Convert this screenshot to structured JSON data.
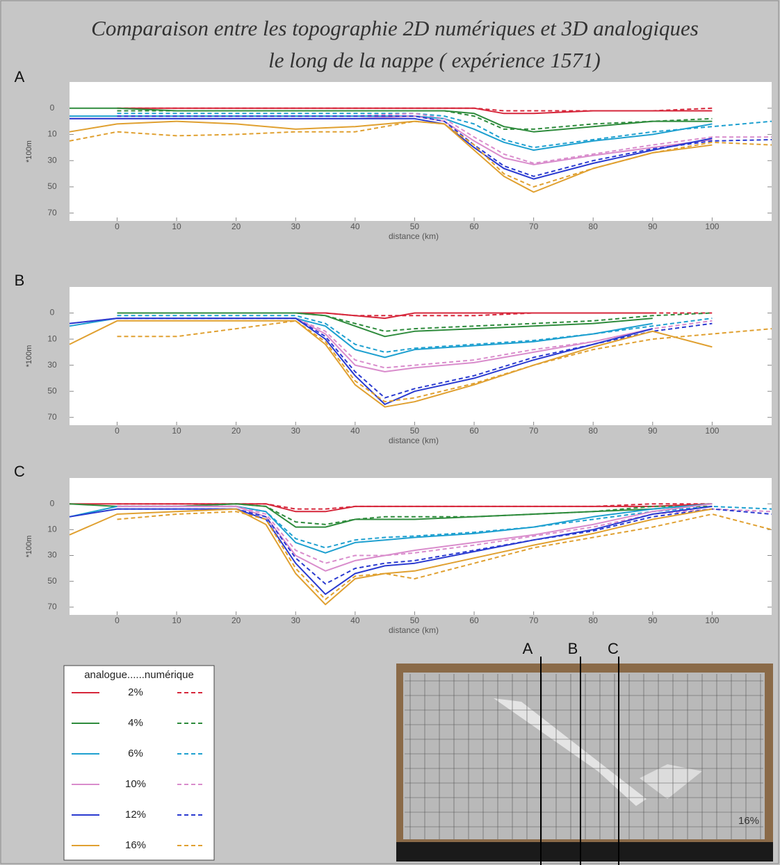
{
  "title": [
    "Comparaison  entre les topographie 2D numériques et 3D analogiques",
    "le long de la nappe ( expérience 1571)"
  ],
  "legend_header": "analogue......numérique",
  "photo": {
    "labels": [
      "A",
      "B",
      "C"
    ],
    "caption": "16%"
  },
  "chart_data": [
    {
      "type": "line",
      "label": "A",
      "xlabel": "distance (km)",
      "ylabel": "*100m",
      "x": [
        -8,
        0,
        10,
        20,
        30,
        40,
        50,
        55,
        60,
        65,
        70,
        80,
        90,
        100,
        110
      ],
      "xlim": [
        -8,
        110
      ],
      "ylim": [
        -10,
        76
      ],
      "xticks": [
        0,
        10,
        20,
        30,
        40,
        50,
        60,
        70,
        80,
        90,
        100
      ],
      "yticks": [
        0,
        10,
        30,
        50,
        70
      ],
      "y_inverted": true,
      "series": [
        {
          "name": "2%",
          "color": "#d6263a",
          "dash": false,
          "values": [
            null,
            0,
            0,
            0,
            0,
            0,
            0,
            0,
            0,
            2,
            2,
            1,
            1,
            1,
            null
          ]
        },
        {
          "name": "2%",
          "color": "#d6263a",
          "dash": true,
          "values": [
            null,
            0,
            0,
            0,
            0,
            0,
            0,
            0,
            0,
            1,
            1,
            1,
            1,
            0,
            null
          ]
        },
        {
          "name": "4%",
          "color": "#2e8b3c",
          "dash": false,
          "values": [
            0,
            0,
            1,
            1,
            1,
            1,
            1,
            1,
            2,
            7,
            9,
            7,
            5,
            5,
            null
          ]
        },
        {
          "name": "4%",
          "color": "#2e8b3c",
          "dash": true,
          "values": [
            null,
            1,
            1,
            1,
            1,
            1,
            1,
            1,
            3,
            8,
            8,
            6,
            5,
            4,
            null
          ]
        },
        {
          "name": "6%",
          "color": "#1ea0d0",
          "dash": false,
          "values": [
            3,
            3,
            3,
            3,
            3,
            3,
            3,
            4,
            8,
            16,
            22,
            15,
            10,
            6,
            null
          ]
        },
        {
          "name": "6%",
          "color": "#1ea0d0",
          "dash": true,
          "values": [
            null,
            2,
            2,
            2,
            2,
            2,
            2,
            3,
            6,
            14,
            20,
            14,
            9,
            7,
            5
          ]
        },
        {
          "name": "10%",
          "color": "#d98ccc",
          "dash": false,
          "values": [
            4,
            4,
            4,
            4,
            4,
            4,
            3,
            5,
            15,
            28,
            33,
            26,
            20,
            14,
            null
          ]
        },
        {
          "name": "10%",
          "color": "#d98ccc",
          "dash": true,
          "values": [
            null,
            3,
            3,
            3,
            3,
            3,
            2,
            4,
            12,
            25,
            32,
            25,
            18,
            12,
            12
          ]
        },
        {
          "name": "12%",
          "color": "#2a3ad0",
          "dash": false,
          "values": [
            4,
            4,
            4,
            4,
            4,
            4,
            4,
            6,
            20,
            36,
            44,
            32,
            22,
            13,
            null
          ]
        },
        {
          "name": "12%",
          "color": "#2a3ad0",
          "dash": true,
          "values": [
            null,
            3,
            3,
            3,
            3,
            3,
            3,
            5,
            18,
            34,
            42,
            30,
            21,
            15,
            14
          ]
        },
        {
          "name": "16%",
          "color": "#e0a030",
          "dash": false,
          "values": [
            9,
            6,
            5,
            6,
            8,
            7,
            5,
            6,
            22,
            42,
            54,
            36,
            24,
            18,
            null
          ]
        },
        {
          "name": "16%",
          "color": "#e0a030",
          "dash": true,
          "values": [
            15,
            9,
            11,
            10,
            9,
            9,
            5,
            6,
            18,
            40,
            50,
            36,
            24,
            16,
            18
          ]
        }
      ]
    },
    {
      "type": "line",
      "label": "B",
      "xlabel": "distance (km)",
      "ylabel": "*100m",
      "x": [
        -8,
        0,
        10,
        20,
        30,
        35,
        40,
        45,
        50,
        60,
        70,
        80,
        90,
        100,
        110
      ],
      "xlim": [
        -8,
        110
      ],
      "ylim": [
        -10,
        76
      ],
      "xticks": [
        0,
        10,
        20,
        30,
        40,
        50,
        60,
        70,
        80,
        90,
        100
      ],
      "yticks": [
        0,
        10,
        30,
        50,
        70
      ],
      "y_inverted": true,
      "series": [
        {
          "name": "2%",
          "color": "#d6263a",
          "dash": false,
          "values": [
            null,
            0,
            0,
            0,
            0,
            0,
            1,
            2,
            0,
            0,
            0,
            0,
            0,
            null,
            null
          ]
        },
        {
          "name": "2%",
          "color": "#d6263a",
          "dash": true,
          "values": [
            null,
            0,
            0,
            0,
            0,
            0,
            1,
            1,
            1,
            1,
            0,
            0,
            0,
            0,
            null
          ]
        },
        {
          "name": "4%",
          "color": "#2e8b3c",
          "dash": false,
          "values": [
            null,
            0,
            0,
            0,
            0,
            1,
            5,
            9,
            7,
            6,
            5,
            4,
            2,
            null,
            null
          ]
        },
        {
          "name": "4%",
          "color": "#2e8b3c",
          "dash": true,
          "values": [
            null,
            0,
            0,
            0,
            0,
            1,
            4,
            7,
            6,
            5,
            4,
            3,
            1,
            0,
            null
          ]
        },
        {
          "name": "6%",
          "color": "#1ea0d0",
          "dash": false,
          "values": [
            5,
            2,
            2,
            2,
            2,
            5,
            18,
            24,
            18,
            15,
            12,
            8,
            4,
            null,
            null
          ]
        },
        {
          "name": "6%",
          "color": "#1ea0d0",
          "dash": true,
          "values": [
            null,
            1,
            1,
            1,
            1,
            4,
            14,
            20,
            17,
            14,
            11,
            8,
            5,
            2,
            null
          ]
        },
        {
          "name": "10%",
          "color": "#d98ccc",
          "dash": false,
          "values": [
            4,
            2,
            2,
            2,
            2,
            8,
            30,
            35,
            32,
            28,
            20,
            12,
            6,
            null,
            null
          ]
        },
        {
          "name": "10%",
          "color": "#d98ccc",
          "dash": true,
          "values": [
            null,
            2,
            2,
            2,
            2,
            7,
            26,
            32,
            30,
            26,
            18,
            12,
            6,
            3,
            null
          ]
        },
        {
          "name": "12%",
          "color": "#2a3ad0",
          "dash": false,
          "values": [
            4,
            2,
            2,
            2,
            2,
            10,
            38,
            60,
            50,
            40,
            26,
            14,
            6,
            null,
            null
          ]
        },
        {
          "name": "12%",
          "color": "#2a3ad0",
          "dash": true,
          "values": [
            null,
            2,
            2,
            2,
            2,
            9,
            35,
            55,
            48,
            38,
            24,
            14,
            7,
            4,
            null
          ]
        },
        {
          "name": "16%",
          "color": "#e0a030",
          "dash": false,
          "values": [
            14,
            3,
            3,
            3,
            3,
            14,
            45,
            62,
            58,
            45,
            30,
            16,
            7,
            16,
            null
          ]
        },
        {
          "name": "16%",
          "color": "#e0a030",
          "dash": true,
          "values": [
            null,
            9,
            9,
            6,
            3,
            12,
            42,
            58,
            55,
            44,
            30,
            18,
            10,
            8,
            6
          ]
        }
      ]
    },
    {
      "type": "line",
      "label": "C",
      "xlabel": "distance (km)",
      "ylabel": "*100m",
      "x": [
        -8,
        0,
        10,
        20,
        25,
        30,
        35,
        40,
        45,
        50,
        60,
        70,
        80,
        90,
        100,
        110
      ],
      "xlim": [
        -8,
        110
      ],
      "ylim": [
        -10,
        76
      ],
      "xticks": [
        0,
        10,
        20,
        30,
        40,
        50,
        60,
        70,
        80,
        90,
        100
      ],
      "yticks": [
        0,
        10,
        30,
        50,
        70
      ],
      "y_inverted": true,
      "series": [
        {
          "name": "2%",
          "color": "#d6263a",
          "dash": false,
          "values": [
            0,
            0,
            0,
            0,
            0,
            3,
            3,
            1,
            1,
            1,
            1,
            1,
            1,
            1,
            0,
            null
          ]
        },
        {
          "name": "2%",
          "color": "#d6263a",
          "dash": true,
          "values": [
            null,
            0,
            0,
            0,
            0,
            2,
            2,
            1,
            1,
            1,
            1,
            1,
            1,
            0,
            0,
            null
          ]
        },
        {
          "name": "4%",
          "color": "#2e8b3c",
          "dash": false,
          "values": [
            0,
            1,
            1,
            0,
            1,
            9,
            9,
            6,
            6,
            6,
            5,
            4,
            3,
            2,
            0,
            null
          ]
        },
        {
          "name": "4%",
          "color": "#2e8b3c",
          "dash": true,
          "values": [
            null,
            1,
            1,
            0,
            1,
            7,
            8,
            6,
            5,
            5,
            5,
            4,
            3,
            1,
            1,
            null
          ]
        },
        {
          "name": "6%",
          "color": "#1ea0d0",
          "dash": false,
          "values": [
            5,
            1,
            1,
            1,
            3,
            20,
            28,
            20,
            18,
            16,
            13,
            9,
            5,
            2,
            0,
            null
          ]
        },
        {
          "name": "6%",
          "color": "#1ea0d0",
          "dash": true,
          "values": [
            null,
            1,
            1,
            1,
            3,
            17,
            24,
            18,
            16,
            15,
            12,
            9,
            6,
            3,
            1,
            2
          ]
        },
        {
          "name": "10%",
          "color": "#d98ccc",
          "dash": false,
          "values": [
            null,
            1,
            1,
            1,
            5,
            30,
            42,
            34,
            30,
            26,
            20,
            14,
            8,
            3,
            0,
            null
          ]
        },
        {
          "name": "10%",
          "color": "#d98ccc",
          "dash": true,
          "values": [
            null,
            1,
            1,
            1,
            4,
            26,
            36,
            30,
            30,
            28,
            22,
            15,
            9,
            4,
            2,
            3
          ]
        },
        {
          "name": "12%",
          "color": "#2a3ad0",
          "dash": false,
          "values": [
            5,
            2,
            2,
            2,
            6,
            36,
            60,
            44,
            38,
            36,
            27,
            18,
            10,
            4,
            1,
            null
          ]
        },
        {
          "name": "12%",
          "color": "#2a3ad0",
          "dash": true,
          "values": [
            null,
            2,
            2,
            2,
            5,
            32,
            52,
            40,
            36,
            34,
            26,
            18,
            11,
            5,
            2,
            4
          ]
        },
        {
          "name": "16%",
          "color": "#e0a030",
          "dash": false,
          "values": [
            14,
            4,
            3,
            2,
            8,
            44,
            68,
            48,
            44,
            42,
            32,
            22,
            13,
            6,
            2,
            null
          ]
        },
        {
          "name": "16%",
          "color": "#e0a030",
          "dash": true,
          "values": [
            null,
            6,
            4,
            3,
            6,
            40,
            64,
            46,
            44,
            48,
            36,
            24,
            16,
            9,
            4,
            10
          ]
        }
      ]
    }
  ]
}
